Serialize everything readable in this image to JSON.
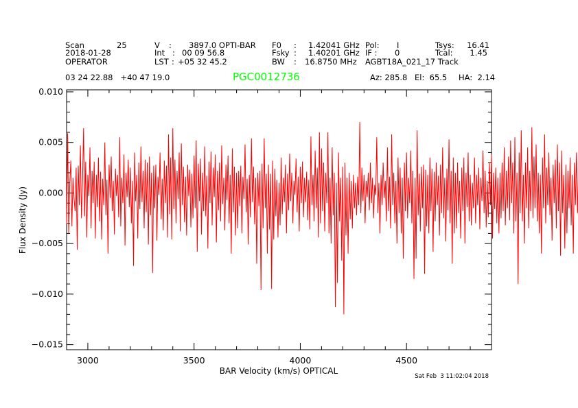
{
  "header": {
    "scan_label": "Scan",
    "scan_value": "25",
    "date": "2018-01-28",
    "observer": "OPERATOR",
    "v_label": "V",
    "v_colon": ":",
    "v_value": "3897.0 OPTI-BAR",
    "int_label": "Int",
    "int_colon": ":",
    "int_value": "00 09 56.8",
    "lst_label": "LST",
    "lst_colon": ":",
    "lst_value": "+05 32 45.2",
    "f0_label": "F0",
    "f0_colon": ":",
    "f0_value": "1.42041 GHz",
    "fsky_label": "Fsky",
    "fsky_colon": ":",
    "fsky_value": "1.40201 GHz",
    "bw_label": "BW",
    "bw_colon": ":",
    "bw_value": "16.8750 MHz",
    "pol_label": "Pol:",
    "pol_value": "I",
    "if_label": "IF :",
    "if_value": "0",
    "project": "AGBT18A_021_17 Track",
    "tsys_label": "Tsys:",
    "tsys_value": "16.41",
    "tcal_label": "Tcal:",
    "tcal_value": "1.45",
    "coords": "03 24 22.88   +40 47 19.0",
    "source": "PGC0012736",
    "az": "Az: 285.8",
    "el": "El:  65.5",
    "ha": "HA:  2.14"
  },
  "timestamp": "Sat Feb  3 11:02:04 2018",
  "colors": {
    "spectrum": "#ff0000",
    "source": "#00ff00",
    "axes": "#000000"
  },
  "chart_data": {
    "type": "line",
    "title": "PGC0012736",
    "xlabel": "BAR Velocity (km/s) OPTICAL",
    "ylabel": "Flux Density (Jy)",
    "xlim": [
      2900,
      4900
    ],
    "ylim": [
      -0.0155,
      0.0102
    ],
    "x_major_ticks": [
      3000,
      3500,
      4000,
      4500
    ],
    "x_tick_labels": [
      "3000",
      "3500",
      "4000",
      "4500"
    ],
    "y_major_ticks": [
      0.01,
      0.005,
      0.0,
      -0.005,
      -0.01,
      -0.015
    ],
    "y_tick_labels": [
      "0.010",
      "0.005",
      "0.000",
      "−0.005",
      "−0.010",
      "−0.015"
    ],
    "series": [
      {
        "name": "spectrum",
        "x_start": 2900,
        "x_step": 5,
        "values": [
          -0.0031,
          0.0059,
          -0.004,
          0.001,
          0.0032,
          -0.0033,
          0.0015,
          -0.0005,
          -0.0018,
          0.0025,
          -0.0056,
          0.0027,
          -0.0012,
          0.0047,
          -0.0025,
          0.0011,
          0.0064,
          -0.0023,
          0.0031,
          -0.0044,
          0.0018,
          -0.0003,
          0.0045,
          -0.0035,
          0.0022,
          -0.001,
          0.0031,
          -0.0045,
          0.0018,
          -0.0014,
          0.0035,
          -0.0028,
          0.0021,
          -0.0046,
          0.0014,
          -0.0012,
          0.005,
          -0.0022,
          0.0013,
          -0.006,
          0.0028,
          -0.0005,
          0.0036,
          -0.0018,
          0.0012,
          -0.0041,
          0.0024,
          -0.0003,
          0.0018,
          -0.0024,
          0.0055,
          -0.0033,
          0.0015,
          -0.001,
          0.0038,
          -0.0052,
          0.002,
          -0.0004,
          0.0033,
          -0.0014,
          0.0025,
          -0.003,
          0.0012,
          -0.0072,
          0.004,
          -0.0008,
          0.0018,
          -0.0045,
          0.003,
          -0.0016,
          0.0046,
          -0.0009,
          0.0022,
          -0.0035,
          0.0033,
          -0.0019,
          0.003,
          -0.0051,
          0.0036,
          -0.0022,
          0.002,
          -0.0079,
          0.0027,
          -0.0015,
          0.0028,
          -0.0047,
          0.0016,
          -0.0002,
          0.004,
          -0.0026,
          0.0014,
          -0.0037,
          0.0032,
          -0.001,
          0.0027,
          -0.0044,
          0.0058,
          -0.0021,
          0.0035,
          -0.0046,
          0.0064,
          -0.0016,
          0.0033,
          -0.003,
          0.0022,
          -0.0006,
          0.004,
          -0.0038,
          0.0049,
          -0.0012,
          0.0026,
          -0.0029,
          0.0016,
          -0.0042,
          0.0028,
          -0.0003,
          0.0023,
          -0.0034,
          0.0019,
          -0.0025,
          0.0037,
          -0.0015,
          0.0052,
          -0.0058,
          0.0029,
          -0.0008,
          0.0034,
          -0.0041,
          0.002,
          -0.0018,
          0.0046,
          -0.0023,
          0.0017,
          -0.0055,
          0.0031,
          -0.001,
          0.0041,
          -0.0032,
          0.0025,
          -0.0004,
          0.0038,
          -0.0049,
          0.0022,
          -0.0017,
          0.003,
          -0.0028,
          0.0047,
          -0.0011,
          0.0015,
          -0.0037,
          0.0028,
          -0.0007,
          0.0037,
          -0.003,
          0.0018,
          -0.006,
          0.0044,
          -0.0019,
          0.0026,
          -0.0042,
          0.002,
          -0.0035,
          0.0022,
          -0.0013,
          0.0027,
          -0.004,
          0.0016,
          -0.0006,
          0.0048,
          -0.0019,
          0.0014,
          -0.0051,
          0.0018,
          -0.0024,
          0.0054,
          -0.0009,
          0.0026,
          -0.0031,
          0.0015,
          -0.007,
          0.002,
          -0.0013,
          0.0022,
          -0.0096,
          0.0029,
          -0.0035,
          0.0054,
          -0.0015,
          0.0019,
          -0.006,
          0.0028,
          -0.0036,
          0.0019,
          -0.0095,
          0.0032,
          -0.0046,
          0.0024,
          -0.0023,
          0.0013,
          -0.0044,
          0.001,
          -0.0032,
          0.0035,
          -0.0021,
          0.0015,
          -0.0009,
          0.0028,
          -0.004,
          0.0019,
          -0.0017,
          0.0039,
          -0.0008,
          0.002,
          -0.003,
          0.0012,
          -0.0002,
          0.0034,
          -0.0019,
          0.0016,
          -0.0038,
          0.0026,
          -0.001,
          0.0031,
          -0.0024,
          0.0015,
          -0.0009,
          0.0021,
          -0.0027,
          0.0013,
          -0.0036,
          0.0056,
          -0.0012,
          0.0018,
          -0.0028,
          0.0042,
          -0.0015,
          0.0025,
          -0.0044,
          0.006,
          -0.003,
          0.0044,
          -0.0018,
          0.003,
          -0.0038,
          0.002,
          -0.001,
          0.006,
          -0.004,
          0.0015,
          -0.005,
          0.0045,
          -0.0022,
          0.002,
          -0.0113,
          0.001,
          -0.0089,
          0.004,
          -0.0028,
          0.0015,
          -0.0067,
          0.0026,
          -0.012,
          0.003,
          -0.0042,
          0.0015,
          -0.006,
          0.002,
          -0.0026,
          0.0012,
          -0.0035,
          0.0018,
          -0.0015,
          0.001,
          -0.0022,
          0.0016,
          -0.0012,
          0.007,
          -0.002,
          0.0025,
          -0.0008,
          0.0018,
          -0.003,
          0.0012,
          -0.0004,
          0.002,
          -0.0017,
          0.003,
          -0.001,
          0.0015,
          -0.0025,
          0.0008,
          -0.0002,
          0.0055,
          -0.002,
          0.001,
          -0.004,
          0.0018,
          -0.0012,
          0.003,
          -0.0005,
          0.0012,
          -0.0028,
          0.0045,
          -0.0018,
          0.0016,
          -0.0035,
          0.0058,
          -0.0012,
          0.002,
          -0.003,
          0.0012,
          -0.005,
          0.0035,
          -0.002,
          0.0025,
          -0.004,
          0.0015,
          -0.0065,
          0.003,
          -0.0018,
          0.004,
          -0.0025,
          0.0015,
          -0.001,
          0.0042,
          -0.003,
          0.0022,
          -0.0085,
          0.0015,
          -0.0065,
          0.0062,
          -0.0022,
          0.0019,
          -0.0038,
          0.0026,
          -0.0015,
          0.0028,
          -0.008,
          0.0023,
          -0.0033,
          0.0018,
          -0.004,
          0.0035,
          -0.0018,
          0.0024,
          -0.0058,
          0.0021,
          -0.0028,
          0.003,
          -0.0012,
          0.0017,
          -0.0042,
          0.0028,
          -0.002,
          0.0045,
          -0.0025,
          0.0015,
          -0.0048,
          0.0024,
          -0.0017,
          0.0053,
          -0.003,
          0.0022,
          -0.007,
          0.0035,
          -0.004,
          0.002,
          -0.0035,
          0.003,
          -0.002,
          0.0012,
          -0.0045,
          0.0025,
          -0.0018,
          0.0035,
          -0.005,
          0.002,
          -0.0014,
          0.004,
          -0.0028,
          0.0018,
          -0.0032,
          0.001,
          -0.0015,
          0.0035,
          -0.003,
          0.0018,
          -0.0012,
          0.0025,
          -0.0036,
          0.0015,
          -0.0008,
          0.0042,
          -0.002,
          0.0022,
          -0.0034,
          0.0012,
          -0.0024,
          0.003,
          -0.0012,
          0.0038,
          -0.0045,
          0.002,
          -0.0016,
          0.0025,
          -0.003,
          0.0015,
          -0.004,
          0.002,
          -0.0025,
          0.003,
          -0.0018,
          0.0045,
          -0.0032,
          0.0022,
          -0.0015,
          0.0036,
          -0.0027,
          0.0052,
          -0.001,
          0.003,
          -0.004,
          0.0055,
          -0.0028,
          0.002,
          -0.009,
          0.004,
          -0.002,
          0.0062,
          -0.0028,
          0.0018,
          -0.005,
          0.003,
          -0.0015,
          0.0045,
          -0.0035,
          0.0022,
          -0.0018,
          0.0065,
          -0.0025,
          0.0036,
          -0.0015,
          0.0048,
          -0.0028,
          0.002,
          -0.004,
          0.0018,
          -0.006,
          0.0035,
          -0.0015,
          0.0058,
          -0.003,
          0.0025,
          -0.0012,
          0.004,
          -0.0022,
          0.0015,
          -0.0047,
          0.0028,
          -0.001,
          0.0033,
          -0.0035,
          0.0048,
          -0.0018,
          0.003,
          -0.0062,
          0.0042,
          -0.002,
          0.0018,
          -0.0055,
          0.0028,
          -0.004,
          0.0022,
          -0.0015,
          0.0035,
          -0.0032,
          0.0018,
          -0.006,
          0.003,
          -0.0012,
          0.004,
          -0.002,
          0.0025,
          -0.0012,
          0.003,
          -0.004,
          0.0033,
          -0.0018,
          0.0025,
          -0.0008,
          0.0028,
          -0.0044,
          0.0005
        ]
      }
    ]
  }
}
